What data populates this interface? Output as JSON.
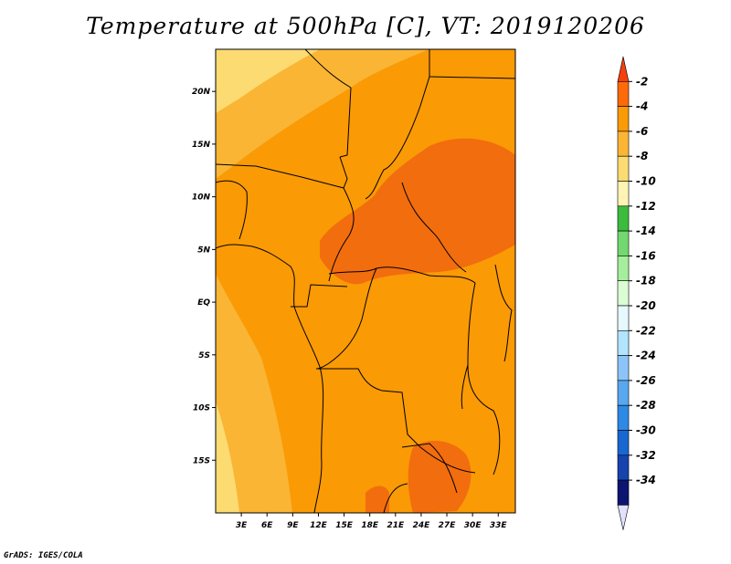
{
  "title": "Temperature at 500hPa [C], VT: 2019120206",
  "footer": "GrADS: IGES/COLA",
  "map": {
    "lat_range": [
      -20,
      24
    ],
    "lon_range": [
      0,
      35
    ],
    "lat_ticks": [
      {
        "value": 20,
        "label": "20N"
      },
      {
        "value": 15,
        "label": "15N"
      },
      {
        "value": 10,
        "label": "10N"
      },
      {
        "value": 5,
        "label": "5N"
      },
      {
        "value": 0,
        "label": "EQ"
      },
      {
        "value": -5,
        "label": "5S"
      },
      {
        "value": -10,
        "label": "10S"
      },
      {
        "value": -15,
        "label": "15S"
      }
    ],
    "lon_ticks": [
      {
        "value": 3,
        "label": "3E"
      },
      {
        "value": 6,
        "label": "6E"
      },
      {
        "value": 9,
        "label": "9E"
      },
      {
        "value": 12,
        "label": "12E"
      },
      {
        "value": 15,
        "label": "15E"
      },
      {
        "value": 18,
        "label": "18E"
      },
      {
        "value": 21,
        "label": "21E"
      },
      {
        "value": 24,
        "label": "24E"
      },
      {
        "value": 27,
        "label": "27E"
      },
      {
        "value": 30,
        "label": "30E"
      },
      {
        "value": 33,
        "label": "33E"
      }
    ]
  },
  "colorbar": {
    "labels": [
      "-2",
      "-4",
      "-6",
      "-8",
      "-10",
      "-12",
      "-14",
      "-16",
      "-18",
      "-20",
      "-22",
      "-24",
      "-26",
      "-28",
      "-30",
      "-32",
      "-34"
    ],
    "colors": [
      "#f2410e",
      "#fc6a0a",
      "#fa9a05",
      "#fab535",
      "#fddb73",
      "#fff4b4",
      "#3cbc3c",
      "#72d86f",
      "#a5ee9b",
      "#dbfdd4",
      "#e6f9fe",
      "#b0e5fd",
      "#8cc4f8",
      "#58a8f0",
      "#2d89e6",
      "#1967d1",
      "#1643ae",
      "#0c1572",
      "#e1e0fd"
    ]
  }
}
